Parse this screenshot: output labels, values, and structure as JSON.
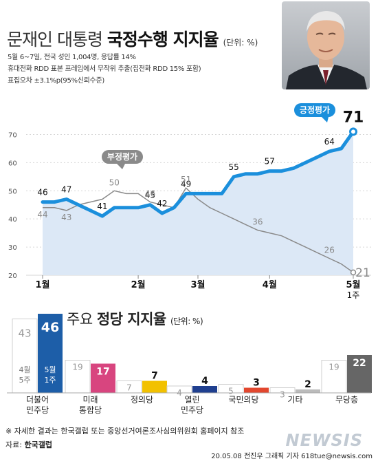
{
  "header": {
    "title_prefix": "문재인 대통령 ",
    "title_bold": "국정수행 지지율",
    "title_unit": "(단위: %)",
    "notes": [
      "5월 6~7일, 전국 성인 1,004명, 응답률 14%",
      "휴대전화 RDD 표본 프레임에서 무작위 추출(집전화 RDD 15% 포함)",
      "표집오차 ±3.1%p(95%신뢰수준)"
    ]
  },
  "chart_data": [
    {
      "type": "line",
      "ylim": [
        20,
        75
      ],
      "yticks": [
        20,
        30,
        40,
        50,
        60,
        70
      ],
      "x_labels": [
        {
          "x": 1,
          "text": "1월"
        },
        {
          "x": 9,
          "text": "2월"
        },
        {
          "x": 14,
          "text": "3월"
        },
        {
          "x": 20,
          "text": "4월"
        },
        {
          "x": 27,
          "text": "5월"
        }
      ],
      "x_sublabel": {
        "x": 27,
        "text": "1주"
      },
      "series": [
        {
          "name": "긍정평가",
          "color": "#1b8fdc",
          "values": [
            46,
            46,
            47,
            45,
            43,
            41,
            44,
            44,
            44,
            45,
            42,
            44,
            49,
            49,
            49,
            49,
            55,
            56,
            56,
            57,
            57,
            58,
            60,
            62,
            64,
            65,
            71
          ],
          "labels": [
            [
              0,
              46
            ],
            [
              2,
              47
            ],
            [
              5,
              41
            ],
            [
              9,
              45
            ],
            [
              10,
              42
            ],
            [
              12,
              49
            ],
            [
              16,
              55
            ],
            [
              19,
              57
            ],
            [
              24,
              64
            ],
            [
              26,
              71
            ]
          ]
        },
        {
          "name": "부정평가",
          "color": "#8a8a8a",
          "values": [
            44,
            44,
            43,
            45,
            46,
            47,
            50,
            49,
            49,
            46,
            45,
            44,
            51,
            47,
            44,
            42,
            40,
            38,
            36,
            35,
            34,
            32,
            30,
            28,
            26,
            24,
            21
          ],
          "labels": [
            [
              0,
              44
            ],
            [
              2,
              43
            ],
            [
              6,
              50
            ],
            [
              9,
              46
            ],
            [
              12,
              51
            ],
            [
              18,
              36
            ],
            [
              24,
              26
            ],
            [
              26,
              21
            ]
          ]
        }
      ]
    },
    {
      "type": "bar",
      "title_prefix": "주요 ",
      "title_bold": "정당 지지율",
      "title_unit": "(단위: %)",
      "categories": [
        "더불어\n민주당",
        "미래\n통합당",
        "정의당",
        "열린\n민주당",
        "국민의당",
        "기타",
        "무당층"
      ],
      "series": [
        {
          "name": "4월 5주",
          "values": [
            43,
            19,
            7,
            4,
            5,
            3,
            19
          ]
        },
        {
          "name": "5월 1주",
          "values": [
            46,
            17,
            7,
            4,
            3,
            2,
            22
          ]
        }
      ],
      "colors": [
        "#1d5ea8",
        "#d8457f",
        "#f2c100",
        "#1f3f8f",
        "#e2472e",
        "#bbbbbb",
        "#666666"
      ]
    }
  ],
  "footer": {
    "note": "※ 자세한 결과는 한국갤럽 또는 중앙선거여론조사심의위원회 홈페이지 참조",
    "source_label": "자료: ",
    "source": "한국갤럽",
    "credit": "20.05.08 전진우 그래픽 기자 618tue@newsis.com",
    "watermark": "NEWSIS"
  }
}
